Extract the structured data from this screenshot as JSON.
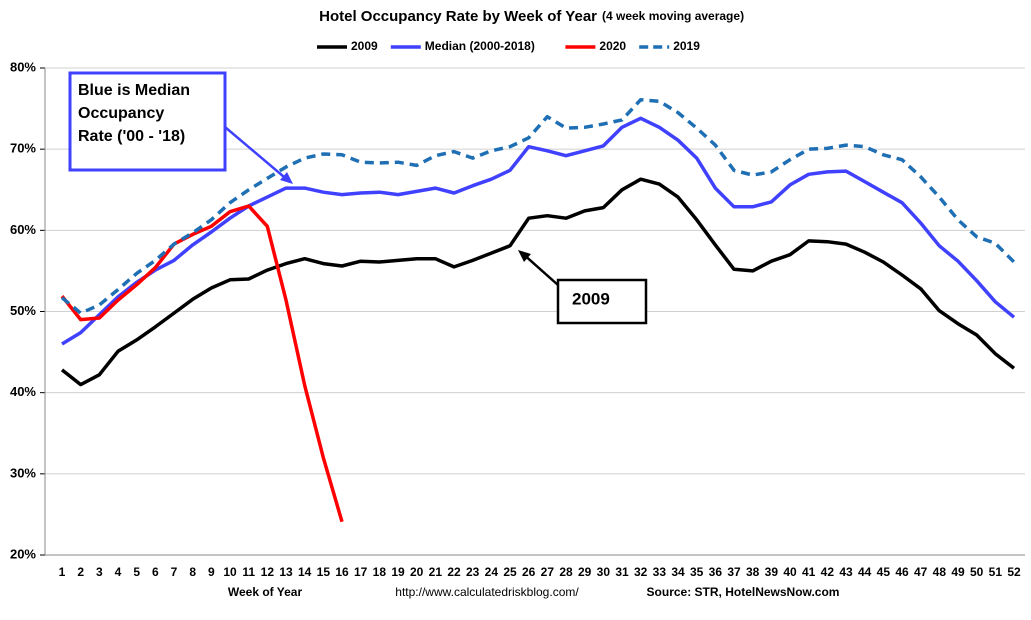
{
  "chart_data": {
    "type": "line",
    "title": "Hotel Occupancy Rate by  Week of Year",
    "subtitle": "(4 week moving average)",
    "x_label": "Week of Year",
    "url": "http://www.calculatedriskblog.com/",
    "source": "Source: STR, HotelNewsNow.com",
    "categories": [
      "1",
      "2",
      "3",
      "4",
      "5",
      "6",
      "7",
      "8",
      "9",
      "10",
      "11",
      "12",
      "13",
      "14",
      "15",
      "16",
      "17",
      "18",
      "19",
      "20",
      "21",
      "22",
      "23",
      "24",
      "25",
      "26",
      "27",
      "28",
      "29",
      "30",
      "31",
      "32",
      "33",
      "34",
      "35",
      "36",
      "37",
      "38",
      "39",
      "40",
      "41",
      "42",
      "43",
      "44",
      "45",
      "46",
      "47",
      "48",
      "49",
      "50",
      "51",
      "52"
    ],
    "ylim": [
      20,
      80
    ],
    "yticks": [
      {
        "value": 20,
        "label": "20%"
      },
      {
        "value": 30,
        "label": "30%"
      },
      {
        "value": 40,
        "label": "40%"
      },
      {
        "value": 50,
        "label": "50%"
      },
      {
        "value": 60,
        "label": "60%"
      },
      {
        "value": 70,
        "label": "70%"
      },
      {
        "value": 80,
        "label": "80%"
      }
    ],
    "grid": true,
    "legend": "top",
    "series": [
      {
        "name": "2009",
        "color": "#000000",
        "dashed": false,
        "values": [
          42.8,
          41.0,
          42.2,
          45.1,
          46.5,
          48.1,
          49.8,
          51.5,
          52.9,
          53.9,
          54.0,
          55.1,
          55.9,
          56.5,
          55.9,
          55.6,
          56.2,
          56.1,
          56.3,
          56.5,
          56.5,
          55.5,
          56.3,
          57.2,
          58.1,
          61.5,
          61.8,
          61.5,
          62.4,
          62.8,
          65.0,
          66.3,
          65.7,
          64.1,
          61.3,
          58.2,
          55.2,
          55.0,
          56.2,
          57.0,
          58.7,
          58.6,
          58.3,
          57.3,
          56.1,
          54.5,
          52.8,
          50.1,
          48.5,
          47.1,
          44.8,
          43.0
        ]
      },
      {
        "name": "Median (2000-2018)",
        "color": "#4040ff",
        "dashed": false,
        "values": [
          46.0,
          47.4,
          49.6,
          51.8,
          53.6,
          55.1,
          56.3,
          58.2,
          59.8,
          61.5,
          63.0,
          64.1,
          65.2,
          65.2,
          64.7,
          64.4,
          64.6,
          64.7,
          64.4,
          64.8,
          65.2,
          64.6,
          65.5,
          66.3,
          67.4,
          70.3,
          69.8,
          69.2,
          69.8,
          70.4,
          72.7,
          73.8,
          72.7,
          71.1,
          68.9,
          65.2,
          62.9,
          62.9,
          63.5,
          65.6,
          66.9,
          67.2,
          67.3,
          66.0,
          64.7,
          63.4,
          60.9,
          58.1,
          56.2,
          53.8,
          51.2,
          49.3
        ]
      },
      {
        "name": "2020",
        "color": "#ff0000",
        "dashed": false,
        "values": [
          51.9,
          49.0,
          49.2,
          51.4,
          53.3,
          55.4,
          58.3,
          59.5,
          60.5,
          62.3,
          63.0,
          60.5,
          51.4,
          40.9,
          32.0,
          24.1,
          null,
          null,
          null,
          null,
          null,
          null,
          null,
          null,
          null,
          null,
          null,
          null,
          null,
          null,
          null,
          null,
          null,
          null,
          null,
          null,
          null,
          null,
          null,
          null,
          null,
          null,
          null,
          null,
          null,
          null,
          null,
          null,
          null,
          null,
          null,
          null
        ]
      },
      {
        "name": "2019",
        "color": "#1f6fb4",
        "dashed": true,
        "values": [
          51.7,
          49.8,
          50.8,
          52.7,
          54.7,
          56.3,
          58.3,
          59.7,
          61.3,
          63.4,
          65.0,
          66.4,
          67.8,
          68.9,
          69.4,
          69.3,
          68.4,
          68.3,
          68.4,
          68.0,
          69.2,
          69.7,
          68.9,
          69.8,
          70.3,
          71.4,
          74.0,
          72.6,
          72.7,
          73.1,
          73.6,
          76.1,
          75.9,
          74.5,
          72.6,
          70.5,
          67.4,
          66.8,
          67.2,
          68.7,
          70.0,
          70.1,
          70.5,
          70.3,
          69.3,
          68.7,
          66.6,
          64.1,
          61.3,
          59.2,
          58.4,
          56.1
        ]
      }
    ],
    "annotations": [
      {
        "lines": [
          "Blue is Median",
          "Occupancy",
          "Rate ('00 - '18)"
        ],
        "color": "#4040ff"
      },
      {
        "lines": [
          "2009"
        ],
        "color": "#000000"
      }
    ]
  }
}
